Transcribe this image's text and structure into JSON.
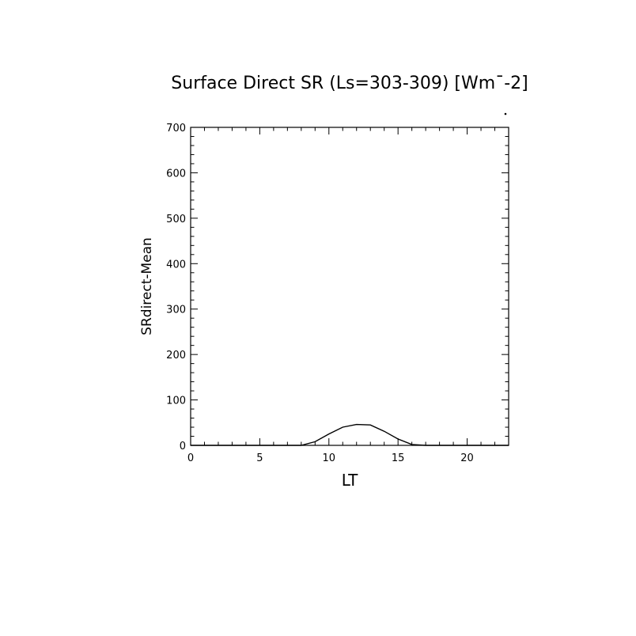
{
  "chart_data": {
    "type": "line",
    "title": "Surface Direct SR (Ls=303-309) [Wm¯-2]",
    "xlabel": "LT",
    "ylabel": "SRdirect-Mean",
    "xlim": [
      0,
      23
    ],
    "ylim": [
      0,
      700
    ],
    "x_ticks": [
      0,
      5,
      10,
      15,
      20
    ],
    "x_tick_labels": [
      "0",
      "5",
      "10",
      "15",
      "20"
    ],
    "y_ticks": [
      0,
      100,
      200,
      300,
      400,
      500,
      600,
      700
    ],
    "y_tick_labels": [
      "0",
      "100",
      "200",
      "300",
      "400",
      "500",
      "600",
      "700"
    ],
    "grid": false,
    "series": [
      {
        "x": [
          0,
          1,
          2,
          3,
          4,
          5,
          6,
          7,
          8,
          9,
          10,
          11,
          12,
          13,
          14,
          15,
          16,
          17,
          18,
          19,
          20,
          21,
          22,
          23
        ],
        "values": [
          0,
          0,
          0,
          0,
          0,
          0,
          0,
          0,
          0,
          8,
          25,
          40,
          46,
          45,
          31,
          14,
          2,
          0,
          0,
          0,
          0,
          0,
          0,
          0
        ]
      }
    ]
  }
}
